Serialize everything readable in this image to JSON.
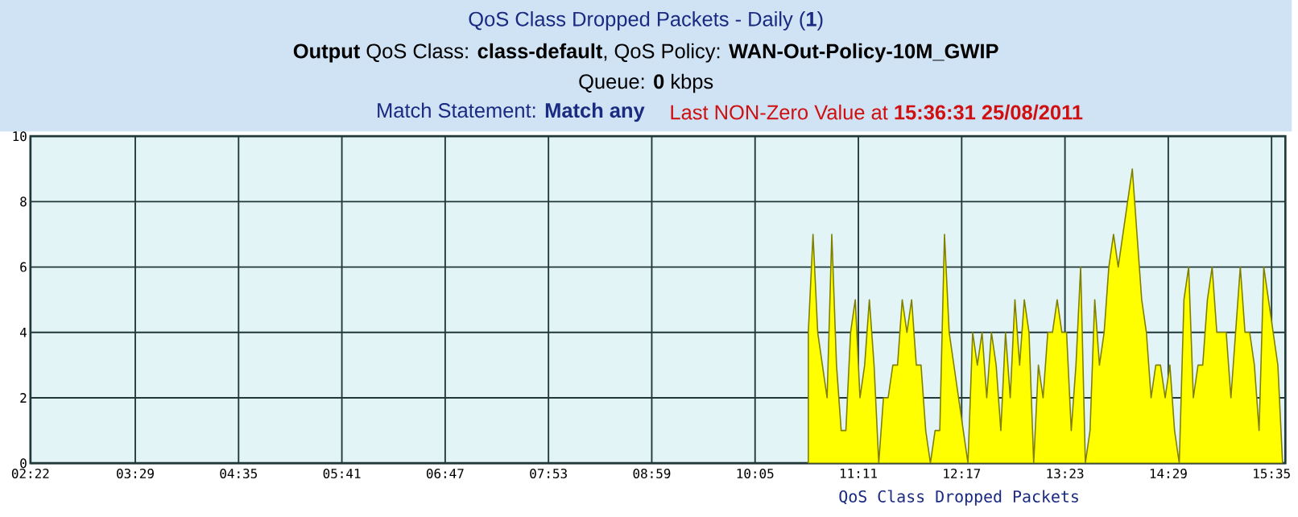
{
  "chart_data": {
    "type": "area",
    "title": "QoS Class Dropped Packets - Daily (**1**)",
    "subtitle": "**Output** QoS Class: **class-default**, QoS Policy: **WAN-Out-Policy-10M_GWIP**",
    "annotations": [
      "Queue: **0** kbps",
      "Match Statement: **Match any**",
      "Last NON-Zero Value at **15:36:31 25/08/2011**"
    ],
    "xlabel": "QoS Class Dropped Packets",
    "x": [
      10.65,
      10.7,
      10.75,
      10.8,
      10.85,
      10.9,
      10.95,
      11.0,
      11.05,
      11.1,
      11.15,
      11.2,
      11.25,
      11.3,
      11.35,
      11.4,
      11.45,
      11.5,
      11.55,
      11.6,
      11.65,
      11.7,
      11.75,
      11.8,
      11.85,
      11.9,
      11.95,
      12.0,
      12.05,
      12.1,
      12.15,
      12.2,
      12.25,
      12.3,
      12.35,
      12.4,
      12.45,
      12.5,
      12.55,
      12.6,
      12.65,
      12.7,
      12.75,
      12.8,
      12.85,
      12.9,
      12.95,
      13.0,
      13.05,
      13.1,
      13.15,
      13.2,
      13.25,
      13.3,
      13.35,
      13.4,
      13.45,
      13.5,
      13.55,
      13.6,
      13.65,
      13.7,
      13.75,
      13.8,
      13.85,
      13.9,
      13.95,
      14.0,
      14.05,
      14.1,
      14.15,
      14.2,
      14.25,
      14.3,
      14.35,
      14.4,
      14.45,
      14.5,
      14.55,
      14.6,
      14.65,
      14.7,
      14.75,
      14.8,
      14.85,
      14.9,
      14.95,
      15.0,
      15.05,
      15.1,
      15.15,
      15.2,
      15.25,
      15.3,
      15.35,
      15.4,
      15.45,
      15.5,
      15.55,
      15.6,
      15.65,
      15.7
    ],
    "values": [
      4,
      7,
      4,
      3,
      2,
      7,
      3,
      1,
      1,
      4,
      5,
      2,
      3,
      5,
      3,
      0,
      2,
      2,
      3,
      3,
      5,
      4,
      5,
      3,
      3,
      1,
      0,
      1,
      1,
      7,
      4,
      3,
      2,
      1,
      0,
      4,
      3,
      4,
      2,
      4,
      3,
      1,
      4,
      2,
      5,
      3,
      5,
      4,
      0,
      3,
      2,
      4,
      4,
      5,
      4,
      4,
      1,
      3,
      6,
      0,
      1,
      5,
      3,
      4,
      6,
      7,
      6,
      7,
      8,
      9,
      7,
      5,
      4,
      2,
      3,
      3,
      2,
      3,
      1,
      0,
      5,
      6,
      2,
      3,
      3,
      5,
      6,
      4,
      4,
      4,
      2,
      4,
      6,
      4,
      4,
      3,
      1,
      6,
      5,
      4,
      3,
      0
    ],
    "color": "#ffff00",
    "xlim": [
      2.367,
      15.73
    ],
    "xticks": [
      {
        "value": 2.367,
        "label": "02:22"
      },
      {
        "value": 3.483,
        "label": "03:29"
      },
      {
        "value": 4.583,
        "label": "04:35"
      },
      {
        "value": 5.683,
        "label": "05:41"
      },
      {
        "value": 6.783,
        "label": "06:47"
      },
      {
        "value": 7.883,
        "label": "07:53"
      },
      {
        "value": 8.983,
        "label": "08:59"
      },
      {
        "value": 10.083,
        "label": "10:05"
      },
      {
        "value": 11.183,
        "label": "11:11"
      },
      {
        "value": 12.283,
        "label": "12:17"
      },
      {
        "value": 13.383,
        "label": "13:23"
      },
      {
        "value": 14.483,
        "label": "14:29"
      },
      {
        "value": 15.583,
        "label": "15:35"
      }
    ],
    "ylim": [
      0,
      10
    ],
    "yticks": [
      0,
      2,
      4,
      6,
      8,
      10
    ],
    "grid": true
  }
}
